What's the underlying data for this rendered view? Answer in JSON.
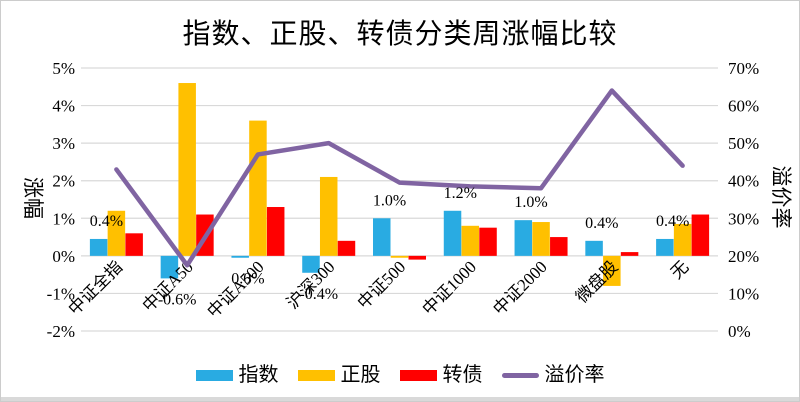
{
  "chart_data": {
    "type": "combo-bar-line",
    "title": "指数、正股、转债分类周涨幅比较",
    "categories": [
      "中证全指",
      "中证A50",
      "中证A500",
      "沪深300",
      "中证500",
      "中证1000",
      "中证2000",
      "微盘股",
      "无"
    ],
    "series": [
      {
        "key": "index",
        "name": "指数",
        "type": "bar",
        "axis": "left",
        "color": "#29ABE2",
        "values": [
          0.45,
          -0.6,
          -0.05,
          -0.45,
          1.0,
          1.2,
          0.95,
          0.4,
          0.45
        ]
      },
      {
        "key": "stock",
        "name": "正股",
        "type": "bar",
        "axis": "left",
        "color": "#FFC000",
        "values": [
          1.2,
          4.6,
          3.6,
          2.1,
          -0.05,
          0.8,
          0.9,
          -0.8,
          0.85
        ]
      },
      {
        "key": "bond",
        "name": "转债",
        "type": "bar",
        "axis": "left",
        "color": "#FF0000",
        "values": [
          0.6,
          1.1,
          1.3,
          0.4,
          -0.1,
          0.75,
          0.5,
          0.1,
          1.1
        ]
      },
      {
        "key": "premium",
        "name": "溢价率",
        "type": "line",
        "axis": "right",
        "color": "#8064A2",
        "values": [
          43,
          17.5,
          47,
          50,
          39.5,
          38.5,
          38,
          64,
          44
        ]
      }
    ],
    "data_labels": {
      "series": "指数",
      "values": [
        "0.4%",
        "-0.6%",
        "0.0%",
        "-0.4%",
        "1.0%",
        "1.2%",
        "1.0%",
        "0.4%",
        "0.4%"
      ]
    },
    "left_axis": {
      "label": "涨幅",
      "min": -2,
      "max": 5,
      "ticks": [
        "5%",
        "4%",
        "3%",
        "2%",
        "1%",
        "0%",
        "-1%",
        "-2%"
      ]
    },
    "right_axis": {
      "label": "溢价率",
      "min": 0,
      "max": 70,
      "ticks": [
        "70%",
        "60%",
        "50%",
        "40%",
        "30%",
        "20%",
        "10%",
        "0%"
      ]
    },
    "grid": true,
    "legend_position": "bottom",
    "colors": {
      "gridline": "#D9D9D9",
      "text": "#000000",
      "background": "#FFFFFF"
    }
  }
}
